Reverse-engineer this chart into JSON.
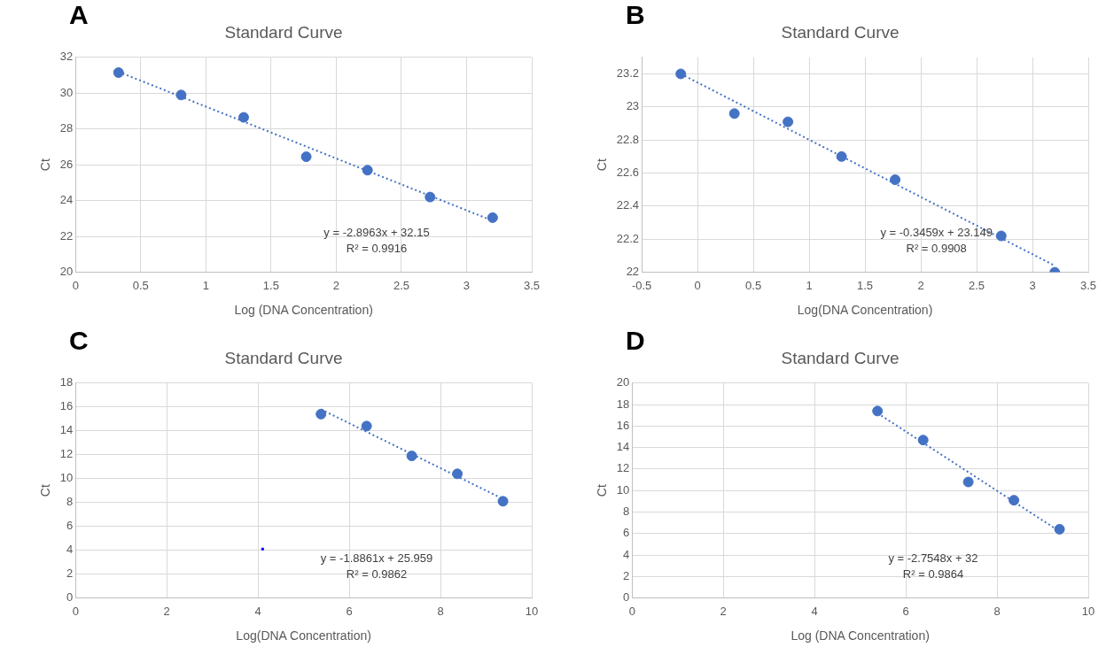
{
  "chart_data": [
    {
      "type": "scatter",
      "title": "Standard Curve",
      "xlabel": "Log (DNA Concentration)",
      "ylabel": "Ct",
      "annotations": [
        "A",
        "y = -2.8963x + 32.15",
        "R² = 0.9916"
      ],
      "xlim": [
        0,
        3.5
      ],
      "xticks": [
        0,
        0.5,
        1,
        1.5,
        2,
        2.5,
        3,
        3.5
      ],
      "ylim": [
        20,
        32
      ],
      "yticks": [
        20,
        22,
        24,
        26,
        28,
        30,
        32
      ],
      "grid": true,
      "legend": false,
      "marker": "circle",
      "series": [
        {
          "color": "#4472c4",
          "x": [
            0.33,
            0.81,
            1.29,
            1.77,
            2.24,
            2.72,
            3.2
          ],
          "values": [
            31.15,
            29.9,
            28.65,
            26.45,
            25.7,
            24.2,
            23.05
          ]
        },
        {
          "type": "line",
          "color": "#4472c4",
          "marker": "none",
          "line_style": "dotted",
          "x": [
            0.33,
            3.2
          ],
          "values": [
            31.19,
            22.88
          ]
        }
      ]
    },
    {
      "type": "scatter",
      "title": "Standard Curve",
      "xlabel": "Log(DNA Concentration)",
      "ylabel": "Ct",
      "annotations": [
        "B",
        "y = -0.3459x + 23.149",
        "R² = 0.9908"
      ],
      "xlim": [
        -0.5,
        3.5
      ],
      "xticks": [
        -0.5,
        0,
        0.5,
        1,
        1.5,
        2,
        2.5,
        3,
        3.5
      ],
      "ylim": [
        22,
        23.3
      ],
      "yticks": [
        22,
        22.2,
        22.4,
        22.6,
        22.8,
        23,
        23.2
      ],
      "grid": true,
      "legend": false,
      "marker": "circle",
      "series": [
        {
          "color": "#4472c4",
          "x": [
            -0.15,
            0.33,
            0.81,
            1.29,
            1.77,
            2.72,
            3.2
          ],
          "values": [
            23.2,
            22.96,
            22.91,
            22.7,
            22.56,
            22.22,
            22.0
          ]
        },
        {
          "type": "line",
          "color": "#4472c4",
          "marker": "none",
          "line_style": "dotted",
          "x": [
            -0.15,
            3.2
          ],
          "values": [
            23.2,
            22.04
          ]
        }
      ]
    },
    {
      "type": "scatter",
      "title": "Standard Curve",
      "xlabel": "Log(DNA Concentration)",
      "ylabel": "Ct",
      "annotations": [
        "C",
        "y = -1.8861x + 25.959",
        "R² = 0.9862"
      ],
      "xlim": [
        0,
        10
      ],
      "xticks": [
        0,
        2,
        4,
        6,
        8,
        10
      ],
      "ylim": [
        0,
        18
      ],
      "yticks": [
        0,
        2,
        4,
        6,
        8,
        10,
        12,
        14,
        16,
        18
      ],
      "grid": true,
      "legend": false,
      "marker": "circle",
      "series": [
        {
          "color": "#4472c4",
          "x": [
            5.38,
            6.38,
            7.37,
            8.37,
            9.37
          ],
          "values": [
            15.4,
            14.4,
            11.9,
            10.4,
            8.1
          ]
        },
        {
          "type": "line",
          "color": "#4472c4",
          "marker": "none",
          "line_style": "dotted",
          "x": [
            5.38,
            9.37
          ],
          "values": [
            15.8,
            8.3
          ]
        },
        {
          "color": "#0000ff",
          "marker": "square",
          "x": [
            4.1
          ],
          "values": [
            4.1
          ]
        }
      ]
    },
    {
      "type": "scatter",
      "title": "Standard Curve",
      "xlabel": "Log (DNA Concentration)",
      "ylabel": "Ct",
      "annotations": [
        "D",
        "y = -2.7548x + 32",
        "R² = 0.9864"
      ],
      "xlim": [
        0,
        10
      ],
      "xticks": [
        0,
        2,
        4,
        6,
        8,
        10
      ],
      "ylim": [
        0,
        20
      ],
      "yticks": [
        0,
        2,
        4,
        6,
        8,
        10,
        12,
        14,
        16,
        18,
        20
      ],
      "grid": true,
      "legend": false,
      "marker": "circle",
      "series": [
        {
          "color": "#4472c4",
          "x": [
            5.38,
            6.38,
            7.37,
            8.37,
            9.37
          ],
          "values": [
            17.4,
            14.7,
            10.8,
            9.1,
            6.4
          ]
        },
        {
          "type": "line",
          "color": "#4472c4",
          "marker": "none",
          "line_style": "dotted",
          "x": [
            5.38,
            9.37
          ],
          "values": [
            17.2,
            6.2
          ]
        }
      ]
    }
  ]
}
